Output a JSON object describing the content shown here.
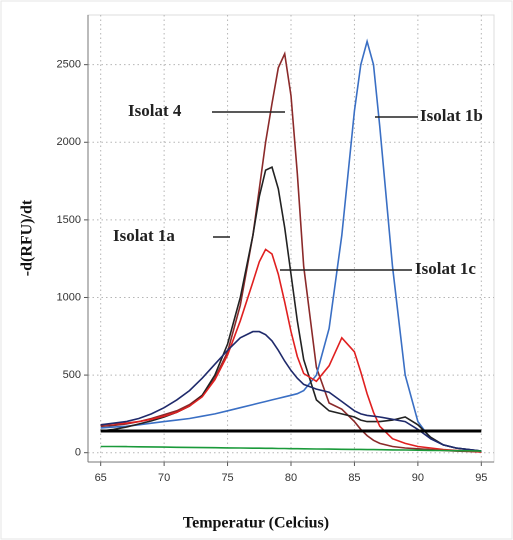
{
  "chart_data": {
    "type": "line",
    "x_label": "Temperatur (Celcius)",
    "y_label": "-d(RFU)/dt",
    "x": [
      65,
      66,
      67,
      68,
      69,
      70,
      71,
      72,
      73,
      74,
      75,
      76,
      77,
      77.5,
      78,
      78.5,
      79,
      79.5,
      80,
      80.5,
      81,
      82,
      83,
      84,
      85,
      85.5,
      86,
      86.5,
      87,
      88,
      89,
      90,
      91,
      92,
      93,
      94,
      95
    ],
    "series": [
      {
        "name": "Isolat 4",
        "color": "#8b2a2a",
        "values": [
          170,
          175,
          185,
          200,
          220,
          245,
          270,
          310,
          370,
          480,
          650,
          950,
          1400,
          1700,
          2000,
          2250,
          2480,
          2570,
          2300,
          1800,
          1200,
          550,
          320,
          280,
          200,
          150,
          110,
          80,
          60,
          40,
          30,
          25,
          20,
          15,
          10,
          8,
          5
        ]
      },
      {
        "name": "Isolat 1b",
        "color": "#3a6fc4",
        "values": [
          160,
          165,
          170,
          180,
          190,
          200,
          210,
          220,
          235,
          250,
          270,
          290,
          310,
          320,
          330,
          340,
          350,
          360,
          370,
          380,
          400,
          500,
          800,
          1400,
          2200,
          2500,
          2650,
          2500,
          2100,
          1200,
          500,
          200,
          90,
          50,
          30,
          20,
          10
        ]
      },
      {
        "name": "Isolat 1a",
        "color": "#222222",
        "values": [
          140,
          150,
          165,
          185,
          205,
          230,
          260,
          300,
          370,
          500,
          700,
          1000,
          1400,
          1650,
          1820,
          1840,
          1700,
          1450,
          1150,
          850,
          600,
          340,
          270,
          250,
          230,
          210,
          200,
          200,
          200,
          210,
          230,
          180,
          100,
          50,
          30,
          20,
          10
        ]
      },
      {
        "name": "Isolat 1c",
        "color": "#e02020",
        "values": [
          180,
          185,
          190,
          200,
          215,
          235,
          260,
          300,
          360,
          470,
          630,
          850,
          1100,
          1230,
          1310,
          1280,
          1150,
          970,
          780,
          620,
          510,
          460,
          560,
          740,
          650,
          520,
          380,
          260,
          170,
          90,
          60,
          40,
          30,
          20,
          15,
          10,
          5
        ]
      },
      {
        "color": "#1f2a6b",
        "values": [
          180,
          190,
          200,
          220,
          250,
          290,
          340,
          400,
          480,
          570,
          660,
          740,
          780,
          780,
          760,
          720,
          660,
          590,
          530,
          480,
          440,
          410,
          390,
          330,
          270,
          250,
          240,
          235,
          230,
          215,
          200,
          150,
          90,
          50,
          30,
          20,
          10
        ]
      },
      {
        "color": "#1a9a3a",
        "values": [
          40,
          40,
          39,
          38,
          37,
          36,
          35,
          34,
          33,
          32,
          31,
          30,
          29,
          29,
          28,
          28,
          27,
          27,
          26,
          26,
          25,
          24,
          23,
          22,
          21,
          21,
          20,
          20,
          19,
          18,
          17,
          16,
          15,
          14,
          13,
          12,
          10
        ]
      }
    ],
    "threshold": 140,
    "xlim": [
      64,
      96
    ],
    "ylim": [
      -60,
      2820
    ],
    "xticks": [
      65,
      70,
      75,
      80,
      85,
      90,
      95
    ],
    "yticks": [
      0,
      500,
      1000,
      1500,
      2000,
      2500
    ],
    "grid": true
  }
}
